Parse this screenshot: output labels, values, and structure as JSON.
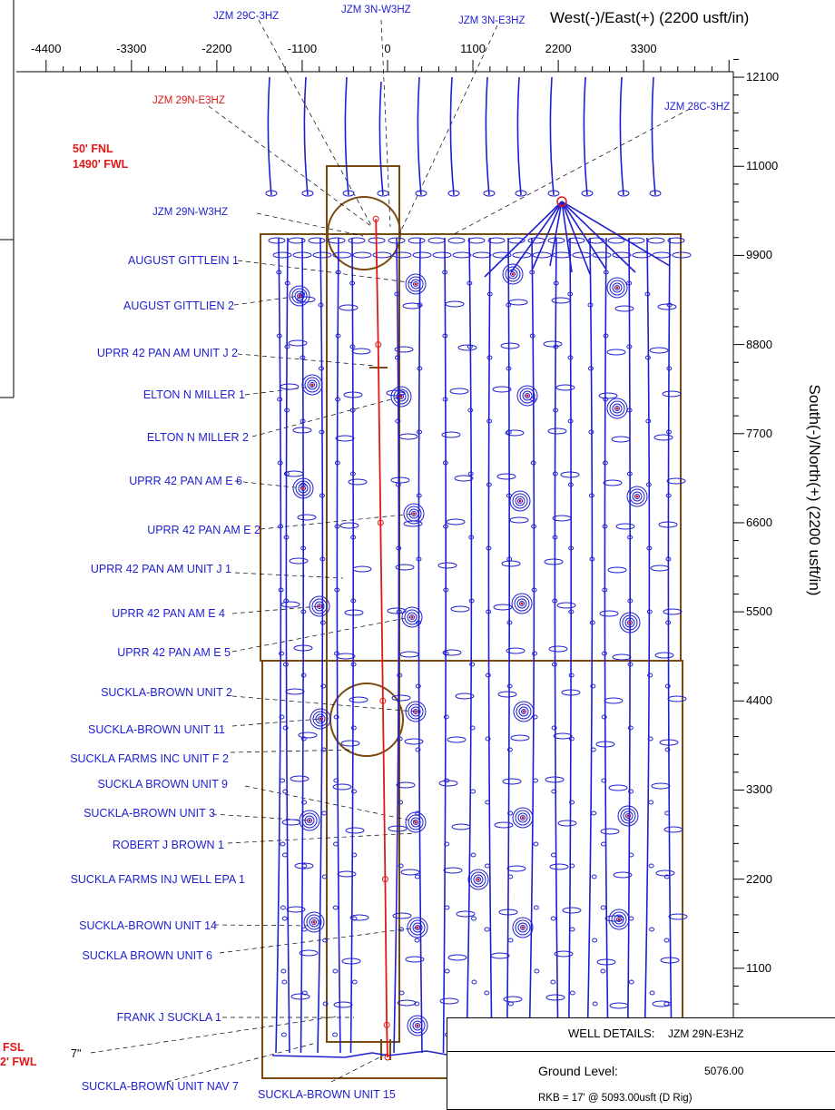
{
  "chart_data": {
    "type": "scatter",
    "title": "",
    "xlabel": "West(-)/East(+) (2200 usft/in)",
    "ylabel": "South(-)/North(+) (2200 usft/in)",
    "xlim": [
      -4600,
      4600
    ],
    "ylim": [
      -200,
      12700
    ],
    "x_ticks": [
      -4400,
      -3300,
      -2200,
      -1100,
      0,
      1100,
      2200,
      3300
    ],
    "x_tick_labels": [
      "-4400",
      "-3300",
      "-2200",
      "-1100",
      "0",
      "1100",
      "2200",
      "3300"
    ],
    "y_ticks": [
      12100,
      11000,
      9900,
      8800,
      7700,
      6600,
      5500,
      4400,
      3300,
      2200,
      1100
    ],
    "y_tick_labels": [
      "12100",
      "11000",
      "9900",
      "8800",
      "7700",
      "6600",
      "5500",
      "4400",
      "3300",
      "2200",
      "1100"
    ],
    "series": [
      {
        "name": "JZM 29N-E3HZ",
        "color": "#e01818",
        "points": [
          [
            -150,
            10350
          ],
          [
            -120,
            8800
          ],
          [
            -90,
            6600
          ],
          [
            -60,
            4400
          ],
          [
            -30,
            2200
          ],
          [
            -10,
            400
          ],
          [
            0,
            0
          ]
        ]
      }
    ],
    "annotations": {
      "top": [
        "JZM 29C-3HZ",
        "JZM 3N-W3HZ",
        "JZM 3N-E3HZ",
        "JZM 28C-3HZ"
      ],
      "left": [
        "JZM 29N-E3HZ",
        "JZM 29N-W3HZ",
        "AUGUST GITTLEIN 1",
        "AUGUST GITTLIEN 2",
        "UPRR 42 PAN AM UNIT J 2",
        "ELTON N MILLER 1",
        "ELTON N MILLER 2",
        "UPRR 42 PAN AM E 6",
        "UPRR 42 PAN AM E 2",
        "UPRR 42 PAN AM UNIT J 1",
        "UPRR 42 PAN AM E 4",
        "UPRR 42 PAN AM E 5",
        "SUCKLA-BROWN UNIT 2",
        "SUCKLA-BROWN UNIT 11",
        "SUCKLA FARMS INC UNIT F 2",
        "SUCKLA BROWN UNIT 9",
        "SUCKLA-BROWN UNIT 3",
        "ROBERT J BROWN 1",
        "SUCKLA FARMS INJ WELL EPA 1",
        "SUCKLA-BROWN UNIT 14",
        "SUCKLA BROWN UNIT 6",
        "FRANK J SUCKLA 1",
        "SUCKLA-BROWN UNIT NAV 7",
        "SUCKLA-BROWN UNIT 15"
      ],
      "surface_location": {
        "line1": "50' FNL",
        "line2": "1490' FWL"
      },
      "bottom_location": {
        "line1": "FSL",
        "line2": "2' FWL"
      },
      "casing": "7\""
    },
    "grid": false,
    "legend": "none"
  },
  "well_details": {
    "label": "WELL DETAILS:",
    "well_name": "JZM 29N-E3HZ",
    "ground_level_label": "Ground Level:",
    "ground_level_value": "5076.00",
    "rkb": "RKB = 17' @ 5093.00usft (D Rig)"
  },
  "colors": {
    "offset_wells": "#1f1fd0",
    "subject_well": "#e01818",
    "lease_lines": "#7a4a10"
  }
}
